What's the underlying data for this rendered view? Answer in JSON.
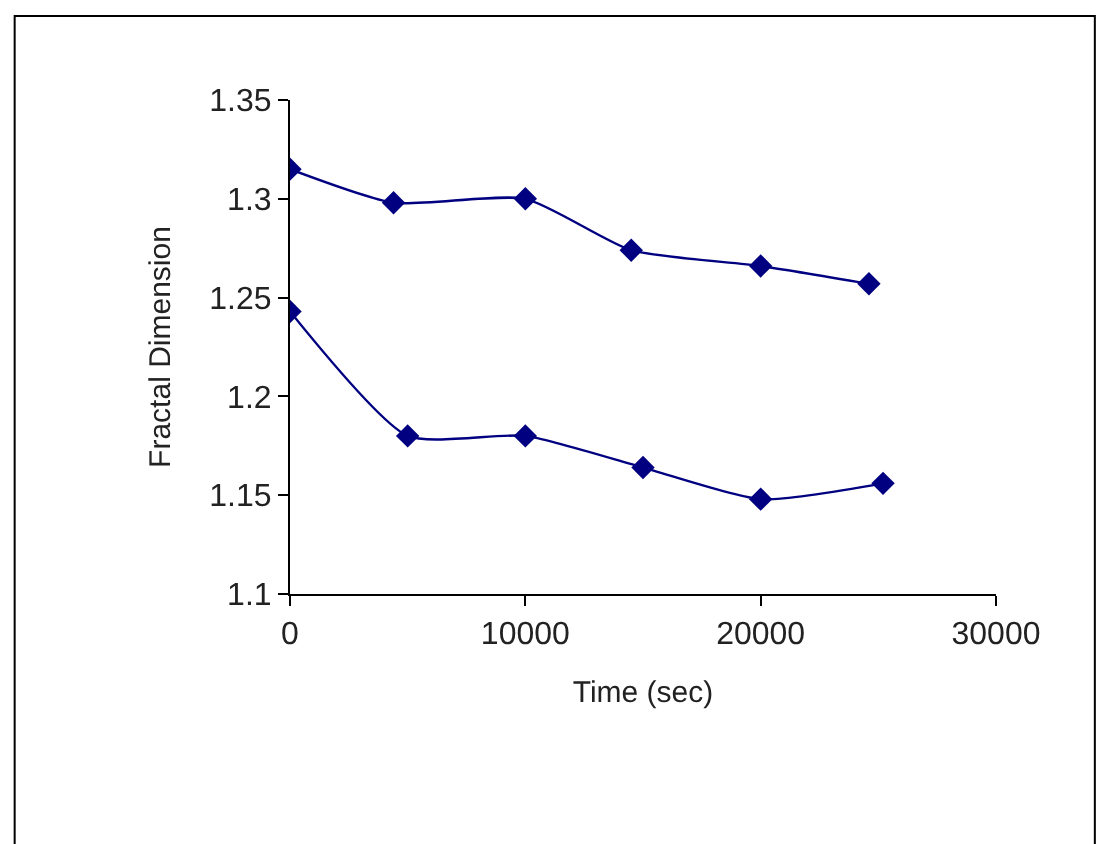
{
  "chart_data": {
    "type": "line",
    "xlabel": "Time (sec)",
    "ylabel": "Fractal Dimension",
    "series": [
      {
        "color": "#000080",
        "x": [
          0,
          4400,
          10000,
          14500,
          20000,
          24600
        ],
        "values": [
          1.315,
          1.298,
          1.3,
          1.274,
          1.266,
          1.257
        ]
      },
      {
        "color": "#000080",
        "x": [
          0,
          5000,
          10000,
          15000,
          20000,
          25200
        ],
        "values": [
          1.243,
          1.18,
          1.18,
          1.164,
          1.148,
          1.156
        ]
      }
    ],
    "xlim": [
      0,
      30000
    ],
    "xticks": [
      0,
      10000,
      20000,
      30000
    ],
    "ylim": [
      1.1,
      1.35
    ],
    "yticks": [
      1.1,
      1.15,
      1.2,
      1.25,
      1.3,
      1.35
    ],
    "grid": false,
    "marker": "diamond",
    "line_style": "solid"
  }
}
